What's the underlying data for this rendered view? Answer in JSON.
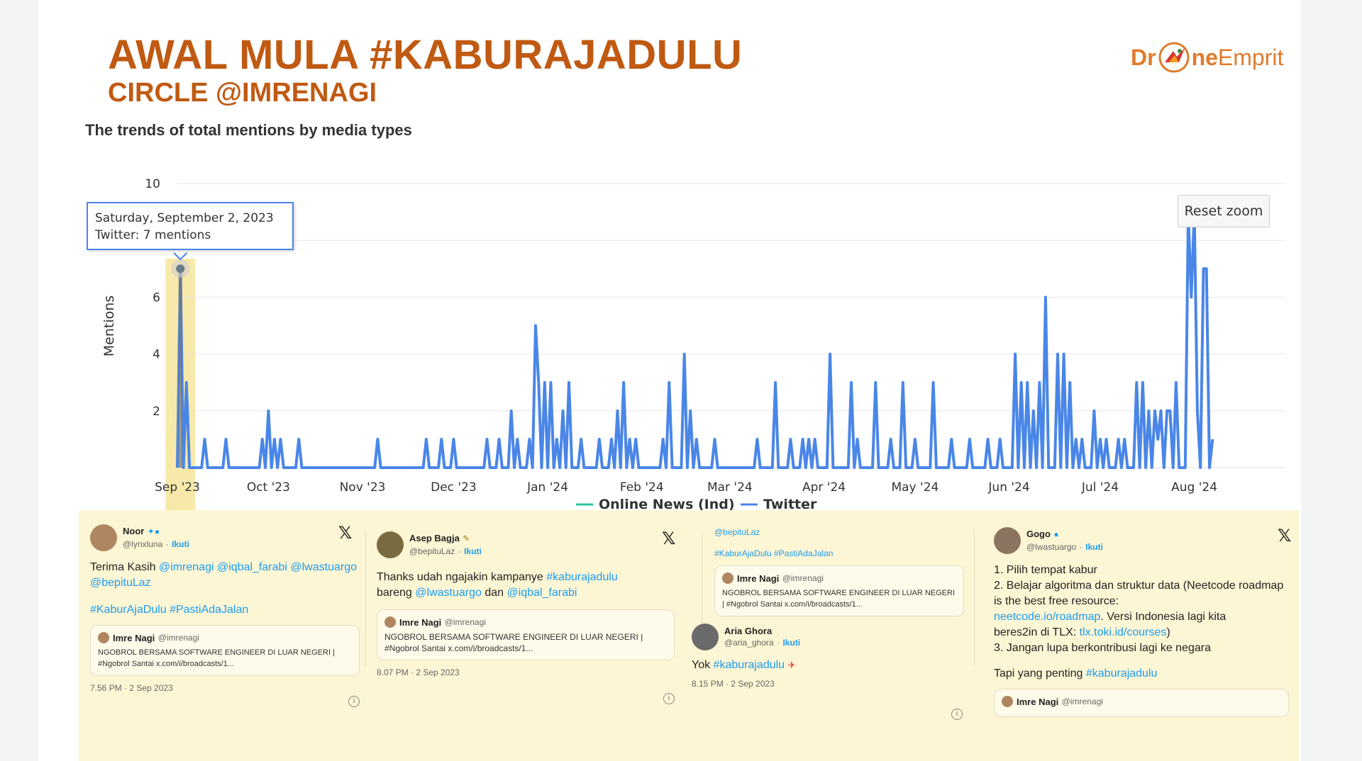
{
  "header": {
    "title": "AWAL MULA #KABURAJADULU",
    "subtitle": "CIRCLE @IMRENAGI",
    "logo_left": "Dr",
    "logo_mid": "ne",
    "logo_right": "Emprit"
  },
  "chart_data": {
    "type": "line",
    "title": "The trends of total mentions by media types",
    "ylabel": "Mentions",
    "xlabel": "",
    "ylim": [
      0,
      10
    ],
    "yticks": [
      "2",
      "4",
      "6",
      "",
      "10"
    ],
    "x_ticks": [
      "Sep '23",
      "Oct '23",
      "Nov '23",
      "Dec '23",
      "Jan '24",
      "Feb '24",
      "Mar '24",
      "Apr '24",
      "May '24",
      "Jun '24",
      "Jul '24",
      "Aug '24"
    ],
    "x_range": [
      "2023-09-01",
      "2024-08-31"
    ],
    "legend": "bottom-center",
    "grid": true,
    "series": [
      {
        "name": "Online News (Ind)",
        "color": "#2bc4a4",
        "points": []
      },
      {
        "name": "Twitter",
        "color": "#4a86e8",
        "points": [
          [
            "2023-09-01",
            0
          ],
          [
            "2023-09-02",
            7
          ],
          [
            "2023-09-03",
            0
          ],
          [
            "2023-09-04",
            3
          ],
          [
            "2023-09-05",
            0
          ],
          [
            "2023-09-09",
            0
          ],
          [
            "2023-09-10",
            1
          ],
          [
            "2023-09-11",
            0
          ],
          [
            "2023-09-16",
            0
          ],
          [
            "2023-09-17",
            1
          ],
          [
            "2023-09-18",
            0
          ],
          [
            "2023-09-28",
            0
          ],
          [
            "2023-09-29",
            1
          ],
          [
            "2023-09-30",
            0
          ],
          [
            "2023-10-01",
            2
          ],
          [
            "2023-10-02",
            0
          ],
          [
            "2023-10-03",
            1
          ],
          [
            "2023-10-04",
            0
          ],
          [
            "2023-10-05",
            1
          ],
          [
            "2023-10-06",
            0
          ],
          [
            "2023-10-10",
            0
          ],
          [
            "2023-10-11",
            1
          ],
          [
            "2023-10-12",
            0
          ],
          [
            "2023-11-05",
            0
          ],
          [
            "2023-11-06",
            1
          ],
          [
            "2023-11-07",
            0
          ],
          [
            "2023-11-21",
            0
          ],
          [
            "2023-11-22",
            1
          ],
          [
            "2023-11-23",
            0
          ],
          [
            "2023-11-26",
            0
          ],
          [
            "2023-11-27",
            1
          ],
          [
            "2023-11-28",
            0
          ],
          [
            "2023-11-30",
            0
          ],
          [
            "2023-12-01",
            1
          ],
          [
            "2023-12-02",
            0
          ],
          [
            "2023-12-11",
            0
          ],
          [
            "2023-12-12",
            1
          ],
          [
            "2023-12-13",
            0
          ],
          [
            "2023-12-15",
            0
          ],
          [
            "2023-12-16",
            1
          ],
          [
            "2023-12-17",
            0
          ],
          [
            "2023-12-19",
            0
          ],
          [
            "2023-12-20",
            2
          ],
          [
            "2023-12-21",
            0
          ],
          [
            "2023-12-22",
            1
          ],
          [
            "2023-12-23",
            0
          ],
          [
            "2023-12-25",
            0
          ],
          [
            "2023-12-26",
            1
          ],
          [
            "2023-12-27",
            0
          ],
          [
            "2023-12-28",
            5
          ],
          [
            "2023-12-29",
            3
          ],
          [
            "2023-12-30",
            0
          ],
          [
            "2023-12-31",
            3
          ],
          [
            "2024-01-01",
            0
          ],
          [
            "2024-01-02",
            3
          ],
          [
            "2024-01-03",
            0
          ],
          [
            "2024-01-04",
            1
          ],
          [
            "2024-01-05",
            0
          ],
          [
            "2024-01-06",
            2
          ],
          [
            "2024-01-07",
            0
          ],
          [
            "2024-01-08",
            3
          ],
          [
            "2024-01-09",
            0
          ],
          [
            "2024-01-11",
            0
          ],
          [
            "2024-01-12",
            1
          ],
          [
            "2024-01-13",
            0
          ],
          [
            "2024-01-17",
            0
          ],
          [
            "2024-01-18",
            1
          ],
          [
            "2024-01-19",
            0
          ],
          [
            "2024-01-21",
            0
          ],
          [
            "2024-01-22",
            1
          ],
          [
            "2024-01-23",
            0
          ],
          [
            "2024-01-24",
            2
          ],
          [
            "2024-01-25",
            0
          ],
          [
            "2024-01-26",
            3
          ],
          [
            "2024-01-27",
            0
          ],
          [
            "2024-01-28",
            1
          ],
          [
            "2024-01-29",
            0
          ],
          [
            "2024-01-30",
            1
          ],
          [
            "2024-01-31",
            0
          ],
          [
            "2024-02-07",
            0
          ],
          [
            "2024-02-08",
            1
          ],
          [
            "2024-02-09",
            0
          ],
          [
            "2024-02-10",
            3
          ],
          [
            "2024-02-11",
            0
          ],
          [
            "2024-02-14",
            0
          ],
          [
            "2024-02-15",
            4
          ],
          [
            "2024-02-16",
            0
          ],
          [
            "2024-02-17",
            2
          ],
          [
            "2024-02-18",
            0
          ],
          [
            "2024-02-19",
            1
          ],
          [
            "2024-02-20",
            0
          ],
          [
            "2024-02-24",
            0
          ],
          [
            "2024-02-25",
            1
          ],
          [
            "2024-02-26",
            0
          ],
          [
            "2024-03-09",
            0
          ],
          [
            "2024-03-10",
            1
          ],
          [
            "2024-03-11",
            0
          ],
          [
            "2024-03-15",
            0
          ],
          [
            "2024-03-16",
            3
          ],
          [
            "2024-03-17",
            0
          ],
          [
            "2024-03-20",
            0
          ],
          [
            "2024-03-21",
            1
          ],
          [
            "2024-03-22",
            0
          ],
          [
            "2024-03-24",
            0
          ],
          [
            "2024-03-25",
            1
          ],
          [
            "2024-03-26",
            0
          ],
          [
            "2024-03-27",
            1
          ],
          [
            "2024-03-28",
            0
          ],
          [
            "2024-03-29",
            1
          ],
          [
            "2024-03-30",
            0
          ],
          [
            "2024-04-02",
            0
          ],
          [
            "2024-04-03",
            4
          ],
          [
            "2024-04-04",
            0
          ],
          [
            "2024-04-09",
            0
          ],
          [
            "2024-04-10",
            3
          ],
          [
            "2024-04-11",
            0
          ],
          [
            "2024-04-12",
            1
          ],
          [
            "2024-04-13",
            0
          ],
          [
            "2024-04-17",
            0
          ],
          [
            "2024-04-18",
            3
          ],
          [
            "2024-04-19",
            0
          ],
          [
            "2024-04-22",
            0
          ],
          [
            "2024-04-23",
            1
          ],
          [
            "2024-04-24",
            0
          ],
          [
            "2024-04-26",
            0
          ],
          [
            "2024-04-27",
            3
          ],
          [
            "2024-04-28",
            0
          ],
          [
            "2024-04-30",
            0
          ],
          [
            "2024-05-01",
            1
          ],
          [
            "2024-05-02",
            0
          ],
          [
            "2024-05-06",
            0
          ],
          [
            "2024-05-07",
            3
          ],
          [
            "2024-05-08",
            0
          ],
          [
            "2024-05-12",
            0
          ],
          [
            "2024-05-13",
            1
          ],
          [
            "2024-05-14",
            0
          ],
          [
            "2024-05-18",
            0
          ],
          [
            "2024-05-19",
            1
          ],
          [
            "2024-05-20",
            0
          ],
          [
            "2024-05-24",
            0
          ],
          [
            "2024-05-25",
            1
          ],
          [
            "2024-05-26",
            0
          ],
          [
            "2024-05-28",
            0
          ],
          [
            "2024-05-29",
            1
          ],
          [
            "2024-05-30",
            0
          ],
          [
            "2024-06-02",
            0
          ],
          [
            "2024-06-03",
            4
          ],
          [
            "2024-06-04",
            0
          ],
          [
            "2024-06-05",
            3
          ],
          [
            "2024-06-06",
            0
          ],
          [
            "2024-06-07",
            3
          ],
          [
            "2024-06-08",
            0
          ],
          [
            "2024-06-09",
            2
          ],
          [
            "2024-06-10",
            0
          ],
          [
            "2024-06-11",
            3
          ],
          [
            "2024-06-12",
            0
          ],
          [
            "2024-06-13",
            6
          ],
          [
            "2024-06-14",
            0
          ],
          [
            "2024-06-16",
            0
          ],
          [
            "2024-06-17",
            4
          ],
          [
            "2024-06-18",
            0
          ],
          [
            "2024-06-19",
            4
          ],
          [
            "2024-06-20",
            0
          ],
          [
            "2024-06-21",
            3
          ],
          [
            "2024-06-22",
            0
          ],
          [
            "2024-06-23",
            1
          ],
          [
            "2024-06-24",
            0
          ],
          [
            "2024-06-25",
            1
          ],
          [
            "2024-06-26",
            0
          ],
          [
            "2024-06-28",
            0
          ],
          [
            "2024-06-29",
            2
          ],
          [
            "2024-06-30",
            0
          ],
          [
            "2024-07-01",
            1
          ],
          [
            "2024-07-02",
            0
          ],
          [
            "2024-07-03",
            1
          ],
          [
            "2024-07-04",
            0
          ],
          [
            "2024-07-06",
            0
          ],
          [
            "2024-07-07",
            1
          ],
          [
            "2024-07-08",
            0
          ],
          [
            "2024-07-09",
            1
          ],
          [
            "2024-07-10",
            0
          ],
          [
            "2024-07-12",
            0
          ],
          [
            "2024-07-13",
            3
          ],
          [
            "2024-07-14",
            0
          ],
          [
            "2024-07-15",
            3
          ],
          [
            "2024-07-16",
            0
          ],
          [
            "2024-07-17",
            2
          ],
          [
            "2024-07-18",
            0
          ],
          [
            "2024-07-19",
            2
          ],
          [
            "2024-07-20",
            1
          ],
          [
            "2024-07-21",
            2
          ],
          [
            "2024-07-22",
            0
          ],
          [
            "2024-07-23",
            2
          ],
          [
            "2024-07-24",
            2
          ],
          [
            "2024-07-25",
            0
          ],
          [
            "2024-07-26",
            3
          ],
          [
            "2024-07-27",
            0
          ],
          [
            "2024-07-29",
            0
          ],
          [
            "2024-07-30",
            9
          ],
          [
            "2024-07-31",
            6
          ],
          [
            "2024-08-01",
            9
          ],
          [
            "2024-08-02",
            2
          ],
          [
            "2024-08-03",
            0
          ],
          [
            "2024-08-04",
            7
          ],
          [
            "2024-08-05",
            7
          ],
          [
            "2024-08-06",
            0
          ],
          [
            "2024-08-07",
            1
          ]
        ]
      }
    ],
    "highlight": {
      "date": "2023-09-02",
      "value": 7
    },
    "tooltip": {
      "line1": "Saturday, September 2, 2023",
      "line2": "Twitter: 7 mentions"
    },
    "reset_label": "Reset zoom"
  },
  "tweets": [
    {
      "name": "Noor",
      "handle": "@lynxluna",
      "follow": "Ikuti",
      "text_plain": "Terima Kasih ",
      "text_links": "@imrenagi @iqbal_farabi @lwastuargo @bepituLaz",
      "hashtags": "#KaburAjaDulu #PastiAdaJalan",
      "quote_name": "Imre Nagi",
      "quote_handle": "@imrenagi",
      "quote_body": "NGOBROL BERSAMA SOFTWARE ENGINEER DI LUAR NEGERI | #Ngobrol Santai x.com/i/broadcasts/1...",
      "time": "7.56 PM · 2 Sep 2023"
    },
    {
      "name": "Asep Bagja",
      "handle": "@bepituLaz",
      "follow": "Ikuti",
      "t1": "Thanks udah ngajakin kampanye ",
      "t1_link": "#kaburajadulu",
      "t2": "bareng ",
      "t2_link1": "@lwastuargo",
      "t2_mid": " dan ",
      "t2_link2": "@iqbal_farabi",
      "quote_name": "Imre Nagi",
      "quote_handle": "@imrenagi",
      "quote_body": "NGOBROL BERSAMA SOFTWARE ENGINEER DI LUAR NEGERI | #Ngobrol Santai x.com/i/broadcasts/1...",
      "time": "8.07 PM · 2 Sep 2023"
    },
    {
      "top_handle": "@bepituLaz",
      "top_hashtags": "#KaburAjaDulu #PastiAdaJalan",
      "quote_name": "Imre Nagi",
      "quote_handle": "@imrenagi",
      "quote_body": "NGOBROL BERSAMA SOFTWARE ENGINEER DI LUAR NEGERI | #Ngobrol Santai x.com/i/broadcasts/1...",
      "name": "Aria Ghora",
      "handle": "@aria_ghora",
      "follow": "Ikuti",
      "text_plain": "Yok ",
      "text_link": "#kaburajadulu",
      "time": "8.15 PM · 2 Sep 2023"
    },
    {
      "name": "Gogo",
      "handle": "@lwastuargo",
      "follow": "Ikuti",
      "l1": "1. Pilih tempat kabur",
      "l2": "2. Belajar algoritma dan struktur data (Neetcode roadmap is the best free resource:",
      "l3_link": "neetcode.io/roadmap",
      "l3_rest": ". Versi Indonesia lagi kita",
      "l4": "beres2in di TLX: ",
      "l4_link": "tlx.toki.id/courses",
      "l4_end": ")",
      "l5": "3. Jangan lupa berkontribusi lagi ke negara",
      "l6": "Tapi yang penting ",
      "l6_link": "#kaburajadulu",
      "quote_name": "Imre Nagi",
      "quote_handle": "@imrenagi"
    }
  ]
}
